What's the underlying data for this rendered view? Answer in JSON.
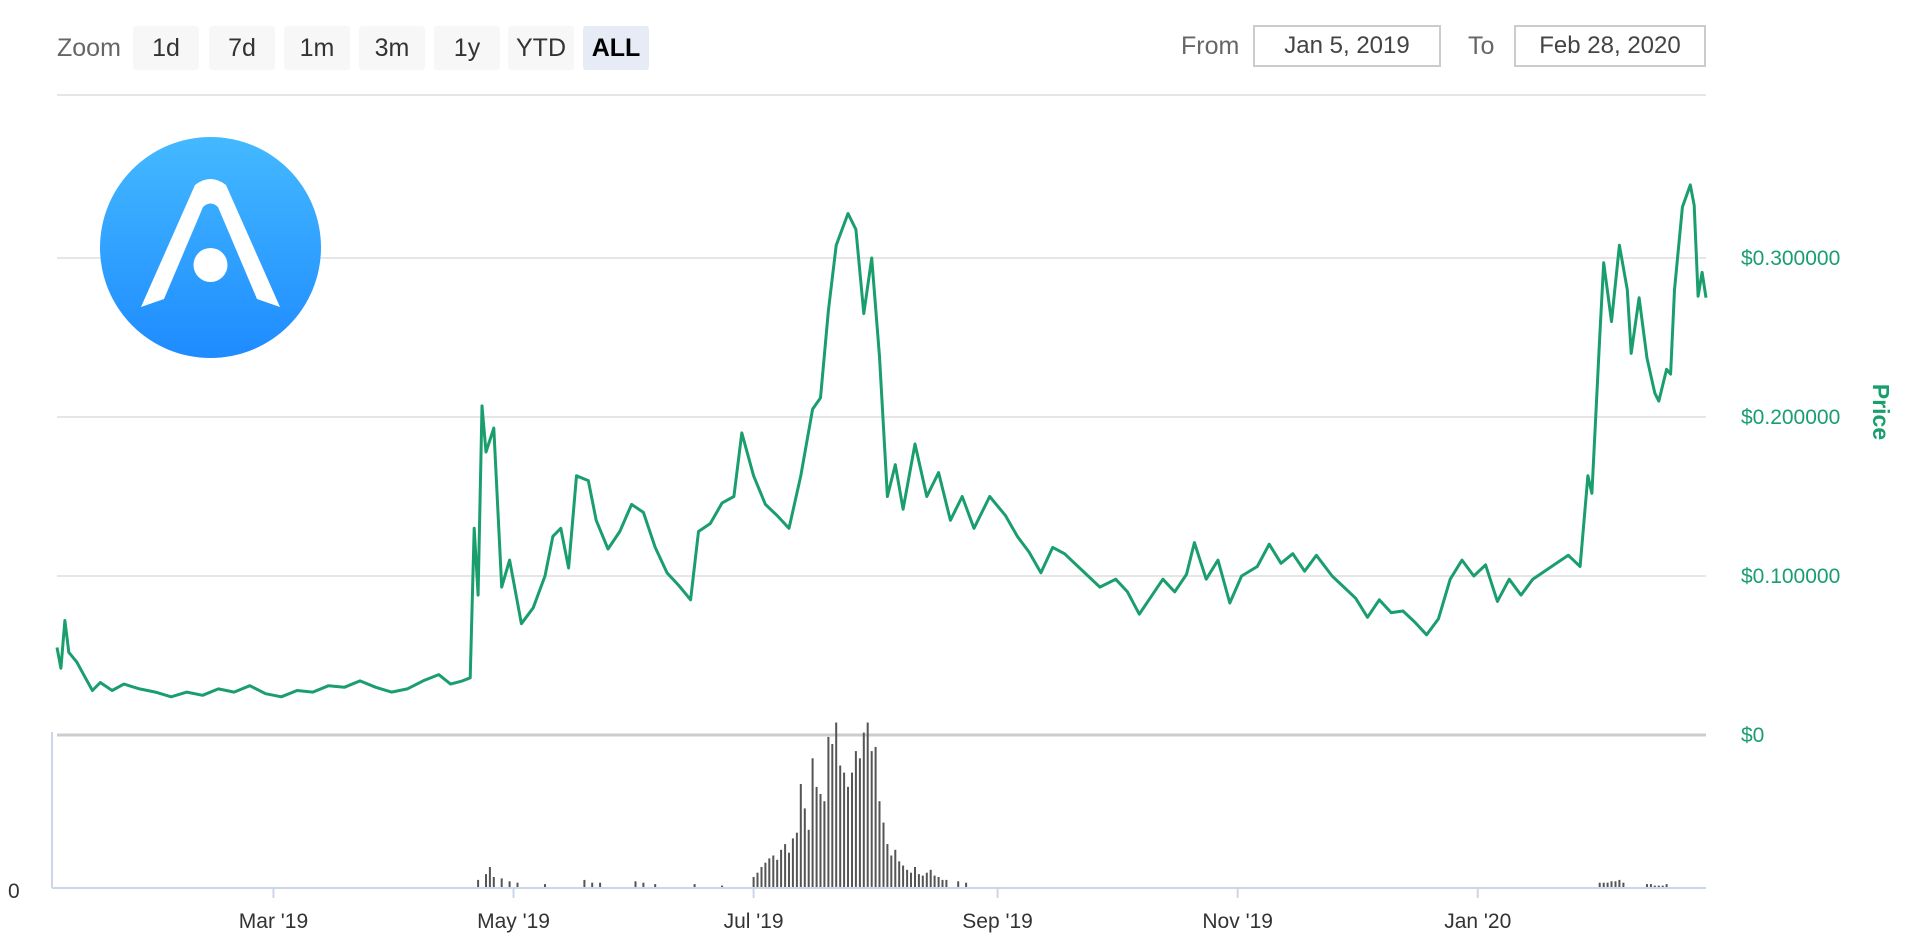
{
  "toolbar": {
    "zoom_label": "Zoom",
    "zoom_buttons": [
      "1d",
      "7d",
      "1m",
      "3m",
      "1y",
      "YTD",
      "ALL"
    ],
    "active_zoom": "ALL",
    "from_label": "From",
    "from_value": "Jan 5, 2019",
    "to_label": "To",
    "to_value": "Feb 28, 2020"
  },
  "colors": {
    "price_line": "#1a9e6e",
    "volume_bars": "#555555",
    "logo_gradient_top": "#44b9ff",
    "logo_gradient_bottom": "#1e8bff"
  },
  "logo_icon": "arch-logo-icon",
  "chart_data": [
    {
      "type": "line",
      "series": [
        {
          "values": [
            [
              "2019-01-05",
              0.055
            ],
            [
              "2019-01-06",
              0.042
            ],
            [
              "2019-01-07",
              0.072
            ],
            [
              "2019-01-08",
              0.052
            ],
            [
              "2019-01-10",
              0.046
            ],
            [
              "2019-01-12",
              0.037
            ],
            [
              "2019-01-14",
              0.028
            ],
            [
              "2019-01-16",
              0.033
            ],
            [
              "2019-01-19",
              0.028
            ],
            [
              "2019-01-22",
              0.032
            ],
            [
              "2019-01-26",
              0.029
            ],
            [
              "2019-01-30",
              0.027
            ],
            [
              "2019-02-03",
              0.024
            ],
            [
              "2019-02-07",
              0.027
            ],
            [
              "2019-02-11",
              0.025
            ],
            [
              "2019-02-15",
              0.029
            ],
            [
              "2019-02-19",
              0.027
            ],
            [
              "2019-02-23",
              0.031
            ],
            [
              "2019-02-27",
              0.026
            ],
            [
              "2019-03-03",
              0.024
            ],
            [
              "2019-03-07",
              0.028
            ],
            [
              "2019-03-11",
              0.027
            ],
            [
              "2019-03-15",
              0.031
            ],
            [
              "2019-03-19",
              0.03
            ],
            [
              "2019-03-23",
              0.034
            ],
            [
              "2019-03-27",
              0.03
            ],
            [
              "2019-03-31",
              0.027
            ],
            [
              "2019-04-04",
              0.029
            ],
            [
              "2019-04-08",
              0.034
            ],
            [
              "2019-04-12",
              0.038
            ],
            [
              "2019-04-15",
              0.032
            ],
            [
              "2019-04-18",
              0.034
            ],
            [
              "2019-04-20",
              0.036
            ],
            [
              "2019-04-21",
              0.13
            ],
            [
              "2019-04-22",
              0.088
            ],
            [
              "2019-04-23",
              0.207
            ],
            [
              "2019-04-24",
              0.178
            ],
            [
              "2019-04-26",
              0.193
            ],
            [
              "2019-04-28",
              0.093
            ],
            [
              "2019-04-30",
              0.11
            ],
            [
              "2019-05-03",
              0.07
            ],
            [
              "2019-05-06",
              0.08
            ],
            [
              "2019-05-09",
              0.1
            ],
            [
              "2019-05-11",
              0.125
            ],
            [
              "2019-05-13",
              0.13
            ],
            [
              "2019-05-15",
              0.105
            ],
            [
              "2019-05-17",
              0.163
            ],
            [
              "2019-05-20",
              0.16
            ],
            [
              "2019-05-22",
              0.135
            ],
            [
              "2019-05-25",
              0.117
            ],
            [
              "2019-05-28",
              0.128
            ],
            [
              "2019-05-31",
              0.145
            ],
            [
              "2019-06-03",
              0.14
            ],
            [
              "2019-06-06",
              0.118
            ],
            [
              "2019-06-09",
              0.102
            ],
            [
              "2019-06-12",
              0.094
            ],
            [
              "2019-06-15",
              0.085
            ],
            [
              "2019-06-17",
              0.128
            ],
            [
              "2019-06-20",
              0.133
            ],
            [
              "2019-06-23",
              0.146
            ],
            [
              "2019-06-26",
              0.15
            ],
            [
              "2019-06-28",
              0.19
            ],
            [
              "2019-07-01",
              0.163
            ],
            [
              "2019-07-04",
              0.145
            ],
            [
              "2019-07-07",
              0.138
            ],
            [
              "2019-07-10",
              0.13
            ],
            [
              "2019-07-13",
              0.163
            ],
            [
              "2019-07-16",
              0.205
            ],
            [
              "2019-07-18",
              0.212
            ],
            [
              "2019-07-20",
              0.267
            ],
            [
              "2019-07-22",
              0.308
            ],
            [
              "2019-07-25",
              0.328
            ],
            [
              "2019-07-27",
              0.318
            ],
            [
              "2019-07-29",
              0.265
            ],
            [
              "2019-07-31",
              0.3
            ],
            [
              "2019-08-02",
              0.238
            ],
            [
              "2019-08-04",
              0.15
            ],
            [
              "2019-08-06",
              0.17
            ],
            [
              "2019-08-08",
              0.142
            ],
            [
              "2019-08-11",
              0.183
            ],
            [
              "2019-08-14",
              0.15
            ],
            [
              "2019-08-17",
              0.165
            ],
            [
              "2019-08-20",
              0.135
            ],
            [
              "2019-08-23",
              0.15
            ],
            [
              "2019-08-26",
              0.13
            ],
            [
              "2019-08-30",
              0.15
            ],
            [
              "2019-09-03",
              0.138
            ],
            [
              "2019-09-06",
              0.125
            ],
            [
              "2019-09-09",
              0.115
            ],
            [
              "2019-09-12",
              0.102
            ],
            [
              "2019-09-15",
              0.118
            ],
            [
              "2019-09-18",
              0.114
            ],
            [
              "2019-09-21",
              0.107
            ],
            [
              "2019-09-24",
              0.1
            ],
            [
              "2019-09-27",
              0.093
            ],
            [
              "2019-10-01",
              0.098
            ],
            [
              "2019-10-04",
              0.09
            ],
            [
              "2019-10-07",
              0.076
            ],
            [
              "2019-10-10",
              0.087
            ],
            [
              "2019-10-13",
              0.098
            ],
            [
              "2019-10-16",
              0.09
            ],
            [
              "2019-10-19",
              0.101
            ],
            [
              "2019-10-21",
              0.121
            ],
            [
              "2019-10-24",
              0.098
            ],
            [
              "2019-10-27",
              0.11
            ],
            [
              "2019-10-30",
              0.083
            ],
            [
              "2019-11-02",
              0.1
            ],
            [
              "2019-11-06",
              0.106
            ],
            [
              "2019-11-09",
              0.12
            ],
            [
              "2019-11-12",
              0.108
            ],
            [
              "2019-11-15",
              0.114
            ],
            [
              "2019-11-18",
              0.103
            ],
            [
              "2019-11-21",
              0.113
            ],
            [
              "2019-11-25",
              0.1
            ],
            [
              "2019-11-28",
              0.093
            ],
            [
              "2019-12-01",
              0.086
            ],
            [
              "2019-12-04",
              0.074
            ],
            [
              "2019-12-07",
              0.085
            ],
            [
              "2019-12-10",
              0.077
            ],
            [
              "2019-12-13",
              0.078
            ],
            [
              "2019-12-16",
              0.071
            ],
            [
              "2019-12-19",
              0.063
            ],
            [
              "2019-12-22",
              0.073
            ],
            [
              "2019-12-25",
              0.098
            ],
            [
              "2019-12-28",
              0.11
            ],
            [
              "2019-12-31",
              0.1
            ],
            [
              "2020-01-03",
              0.107
            ],
            [
              "2020-01-06",
              0.084
            ],
            [
              "2020-01-09",
              0.098
            ],
            [
              "2020-01-12",
              0.088
            ],
            [
              "2020-01-15",
              0.098
            ],
            [
              "2020-01-18",
              0.103
            ],
            [
              "2020-01-21",
              0.108
            ],
            [
              "2020-01-24",
              0.113
            ],
            [
              "2020-01-27",
              0.106
            ],
            [
              "2020-01-29",
              0.163
            ],
            [
              "2020-01-30",
              0.152
            ],
            [
              "2020-02-01",
              0.25
            ],
            [
              "2020-02-02",
              0.297
            ],
            [
              "2020-02-04",
              0.26
            ],
            [
              "2020-02-06",
              0.308
            ],
            [
              "2020-02-08",
              0.28
            ],
            [
              "2020-02-09",
              0.24
            ],
            [
              "2020-02-11",
              0.275
            ],
            [
              "2020-02-13",
              0.237
            ],
            [
              "2020-02-15",
              0.215
            ],
            [
              "2020-02-16",
              0.21
            ],
            [
              "2020-02-18",
              0.23
            ],
            [
              "2020-02-19",
              0.227
            ],
            [
              "2020-02-20",
              0.28
            ],
            [
              "2020-02-22",
              0.332
            ],
            [
              "2020-02-24",
              0.346
            ],
            [
              "2020-02-25",
              0.333
            ],
            [
              "2020-02-26",
              0.276
            ],
            [
              "2020-02-27",
              0.291
            ],
            [
              "2020-02-28",
              0.275
            ]
          ]
        }
      ],
      "ylabel": "Price",
      "yticks": [
        "$0",
        "$0.100000",
        "$0.200000",
        "$0.300000"
      ],
      "ylim": [
        0,
        0.3
      ],
      "grid": true
    },
    {
      "type": "bar",
      "ytick": "0",
      "xticks": [
        "Mar '19",
        "May '19",
        "Jul '19",
        "Sep '19",
        "Nov '19",
        "Jan '20"
      ],
      "x": [
        "2019-04-22",
        "2019-04-24",
        "2019-04-25",
        "2019-04-26",
        "2019-04-28",
        "2019-04-30",
        "2019-05-02",
        "2019-05-09",
        "2019-05-19",
        "2019-05-21",
        "2019-05-23",
        "2019-06-01",
        "2019-06-03",
        "2019-06-06",
        "2019-06-16",
        "2019-06-23",
        "2019-07-01",
        "2019-07-02",
        "2019-07-03",
        "2019-07-04",
        "2019-07-05",
        "2019-07-06",
        "2019-07-07",
        "2019-07-08",
        "2019-07-09",
        "2019-07-10",
        "2019-07-11",
        "2019-07-12",
        "2019-07-13",
        "2019-07-14",
        "2019-07-15",
        "2019-07-16",
        "2019-07-17",
        "2019-07-18",
        "2019-07-19",
        "2019-07-20",
        "2019-07-21",
        "2019-07-22",
        "2019-07-23",
        "2019-07-24",
        "2019-07-25",
        "2019-07-26",
        "2019-07-27",
        "2019-07-28",
        "2019-07-29",
        "2019-07-30",
        "2019-07-31",
        "2019-08-01",
        "2019-08-02",
        "2019-08-03",
        "2019-08-04",
        "2019-08-05",
        "2019-08-06",
        "2019-08-07",
        "2019-08-08",
        "2019-08-09",
        "2019-08-10",
        "2019-08-11",
        "2019-08-12",
        "2019-08-13",
        "2019-08-14",
        "2019-08-15",
        "2019-08-16",
        "2019-08-17",
        "2019-08-18",
        "2019-08-19",
        "2019-08-22",
        "2019-08-24",
        "2020-02-01",
        "2020-02-02",
        "2020-02-03",
        "2020-02-04",
        "2020-02-05",
        "2020-02-06",
        "2020-02-07",
        "2020-02-13",
        "2020-02-14",
        "2020-02-15",
        "2020-02-16",
        "2020-02-17",
        "2020-02-18"
      ],
      "values": [
        5,
        9,
        14,
        7,
        6,
        4,
        3,
        2,
        5,
        3,
        3,
        4,
        3,
        2,
        2,
        1,
        7,
        10,
        14,
        17,
        20,
        22,
        19,
        26,
        30,
        24,
        34,
        38,
        72,
        55,
        40,
        90,
        70,
        65,
        60,
        105,
        100,
        115,
        85,
        80,
        70,
        80,
        95,
        90,
        108,
        115,
        95,
        98,
        60,
        45,
        30,
        22,
        26,
        18,
        15,
        12,
        10,
        14,
        9,
        8,
        10,
        12,
        8,
        7,
        5,
        5,
        4,
        3,
        3,
        3,
        3,
        4,
        4,
        5,
        3,
        2,
        2,
        1,
        1,
        1,
        2
      ]
    }
  ]
}
